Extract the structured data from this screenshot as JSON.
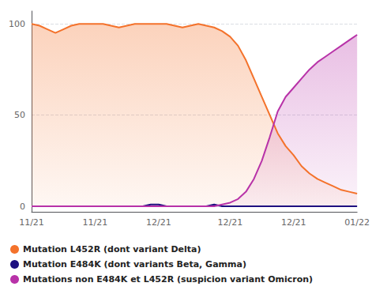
{
  "chart_data": {
    "type": "line",
    "categories": [
      "11/21",
      null,
      null,
      null,
      null,
      null,
      null,
      null,
      "11/21",
      null,
      null,
      null,
      null,
      null,
      null,
      null,
      "12/21",
      null,
      null,
      null,
      null,
      null,
      null,
      null,
      null,
      "12/21",
      null,
      null,
      null,
      null,
      null,
      null,
      null,
      "12/21",
      null,
      null,
      null,
      null,
      null,
      null,
      null,
      "01/22"
    ],
    "series": [
      {
        "name": "Mutation L452R (dont variant Delta)",
        "color": "#f4722b",
        "type": "area",
        "values": [
          100,
          99,
          97,
          95,
          97,
          99,
          100,
          100,
          100,
          100,
          99,
          98,
          99,
          100,
          100,
          100,
          100,
          100,
          99,
          98,
          99,
          100,
          99,
          98,
          96,
          93,
          88,
          80,
          70,
          60,
          50,
          40,
          33,
          28,
          22,
          18,
          15,
          13,
          11,
          9,
          8,
          7
        ]
      },
      {
        "name": "Mutation E484K (dont variants Beta, Gamma)",
        "color": "#1e1080",
        "type": "line",
        "values": [
          0,
          0,
          0,
          0,
          0,
          0,
          0,
          0,
          0,
          0,
          0,
          0,
          0,
          0,
          0,
          1,
          1,
          0,
          0,
          0,
          0,
          0,
          0,
          1,
          0,
          0,
          0,
          0,
          0,
          0,
          0,
          0,
          0,
          0,
          0,
          0,
          0,
          0,
          0,
          0,
          0,
          0
        ]
      },
      {
        "name": "Mutations non E484K et L452R (suspicion variant Omicron)",
        "color": "#b832a8",
        "type": "area",
        "values": [
          0,
          0,
          0,
          0,
          0,
          0,
          0,
          0,
          0,
          0,
          0,
          0,
          0,
          0,
          0,
          0,
          0,
          0,
          0,
          0,
          0,
          0,
          0,
          0,
          1,
          2,
          4,
          8,
          15,
          25,
          38,
          52,
          60,
          65,
          70,
          75,
          79,
          82,
          85,
          88,
          91,
          94
        ]
      }
    ],
    "ylim": [
      -3,
      107
    ],
    "yticks": [
      0,
      50,
      100
    ],
    "grid": true,
    "legend": "lower left"
  }
}
